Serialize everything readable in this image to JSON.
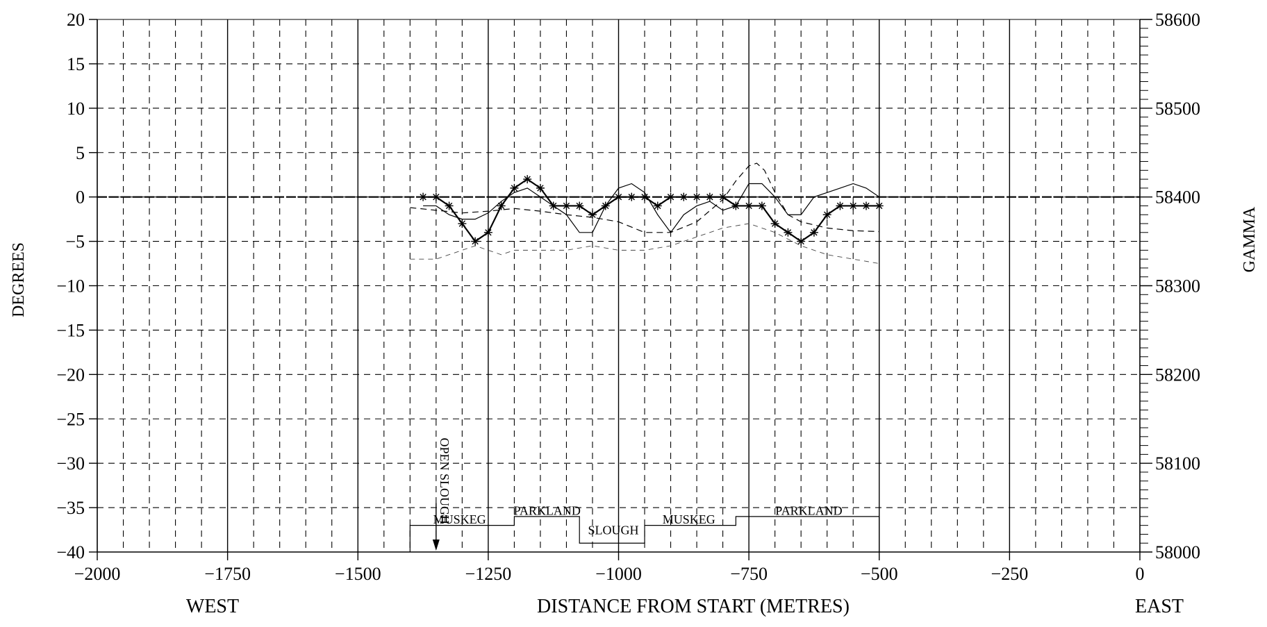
{
  "chart_data": {
    "type": "line",
    "title": "",
    "xlabel": "DISTANCE FROM START (METRES)",
    "ylabel": "DEGREES",
    "y2label": "GAMMA",
    "west_label": "WEST",
    "east_label": "EAST",
    "xlim": [
      -2000,
      0
    ],
    "ylim": [
      -40,
      20
    ],
    "y2lim": [
      58000,
      58600
    ],
    "x_ticks": [
      "-2000",
      "-1750",
      "-1500",
      "-1250",
      "-1000",
      "-750",
      "-500",
      "-250",
      "0"
    ],
    "y_ticks": [
      "20",
      "15",
      "10",
      "5",
      "0",
      "-5",
      "-10",
      "-15",
      "-20",
      "-25",
      "-30",
      "-35",
      "-40"
    ],
    "y2_ticks": [
      "58600",
      "58500",
      "58400",
      "58300",
      "58200",
      "58100",
      "58000"
    ],
    "grid": true,
    "series": [
      {
        "style": "solid-star",
        "axis": "left",
        "x": [
          -1375,
          -1350,
          -1325,
          -1300,
          -1275,
          -1250,
          -1225,
          -1200,
          -1175,
          -1150,
          -1125,
          -1100,
          -1075,
          -1050,
          -1025,
          -1000,
          -975,
          -950,
          -925,
          -900,
          -875,
          -850,
          -825,
          -800,
          -775,
          -750,
          -725,
          -700,
          -675,
          -650,
          -625,
          -600,
          -575,
          -550,
          -525,
          -500
        ],
        "y": [
          0,
          0,
          -1,
          -3,
          -5,
          -4,
          -1,
          1,
          2,
          1,
          -1,
          -1,
          -1,
          -2,
          -1,
          0,
          0,
          0,
          -1,
          0,
          0,
          0,
          0,
          0,
          -1,
          -1,
          -1,
          -3,
          -4,
          -5,
          -4,
          -2,
          -1,
          -1,
          -1,
          -1
        ]
      },
      {
        "style": "solid",
        "axis": "left",
        "x": [
          -1375,
          -1350,
          -1325,
          -1300,
          -1275,
          -1250,
          -1225,
          -1200,
          -1175,
          -1150,
          -1125,
          -1100,
          -1075,
          -1050,
          -1025,
          -1000,
          -975,
          -950,
          -925,
          -900,
          -875,
          -850,
          -825,
          -800,
          -775,
          -750,
          -725,
          -700,
          -675,
          -650,
          -625,
          -600,
          -575,
          -550,
          -525,
          -500
        ],
        "y": [
          -1,
          -1,
          -2,
          -2.5,
          -2.5,
          -1.8,
          -0.5,
          0.5,
          1,
          0,
          -1,
          -2,
          -4,
          -4,
          -1,
          1,
          1.5,
          0.5,
          -2,
          -4,
          -2,
          -1,
          -0.5,
          -1.5,
          -1,
          1.5,
          1.5,
          0,
          -2,
          -2,
          0,
          0.5,
          1,
          1.5,
          1,
          0
        ]
      },
      {
        "style": "dashed",
        "axis": "right",
        "x": [
          -1400,
          -1350,
          -1300,
          -1250,
          -1200,
          -1150,
          -1100,
          -1050,
          -1000,
          -950,
          -900,
          -850,
          -800,
          -775,
          -750,
          -735,
          -720,
          -700,
          -675,
          -650,
          -600,
          -550,
          -500
        ],
        "y": [
          58388,
          58385,
          58382,
          58384,
          58387,
          58384,
          58380,
          58377,
          58372,
          58360,
          58360,
          58372,
          58397,
          58418,
          58435,
          58438,
          58430,
          58405,
          58380,
          58372,
          58365,
          58362,
          58361
        ]
      },
      {
        "style": "thin-dashed",
        "axis": "left",
        "x": [
          -1400,
          -1350,
          -1300,
          -1275,
          -1250,
          -1225,
          -1200,
          -1150,
          -1100,
          -1050,
          -1000,
          -950,
          -900,
          -850,
          -800,
          -750,
          -700,
          -650,
          -600,
          -550,
          -500
        ],
        "y": [
          -7,
          -7,
          -6,
          -5.5,
          -6,
          -6.5,
          -6,
          -6,
          -6,
          -5.5,
          -6,
          -6,
          -5.5,
          -4.5,
          -3.5,
          -3,
          -4,
          -5.5,
          -6.5,
          -7,
          -7.5
        ]
      }
    ],
    "terrain": {
      "zones": [
        {
          "label": "MUSKEG",
          "from": -1400,
          "to": -1200,
          "level": -37,
          "label_x": -1305,
          "label_y": -36.8
        },
        {
          "label": "PARKLAND",
          "from": -1200,
          "to": -1075,
          "level": -36,
          "label_x": -1137,
          "label_y": -35.8
        },
        {
          "label": "SLOUGH",
          "from": -1075,
          "to": -950,
          "level": -39,
          "label_x": -1010,
          "label_y": -38
        },
        {
          "label": "MUSKEG",
          "from": -950,
          "to": -775,
          "level": -37,
          "label_x": -865,
          "label_y": -36.8
        },
        {
          "label": "PARKLAND",
          "from": -775,
          "to": -500,
          "level": -36,
          "label_x": -635,
          "label_y": -35.8
        }
      ],
      "marker": {
        "label": "OPEN SLOUGH",
        "x": -1350
      }
    }
  }
}
